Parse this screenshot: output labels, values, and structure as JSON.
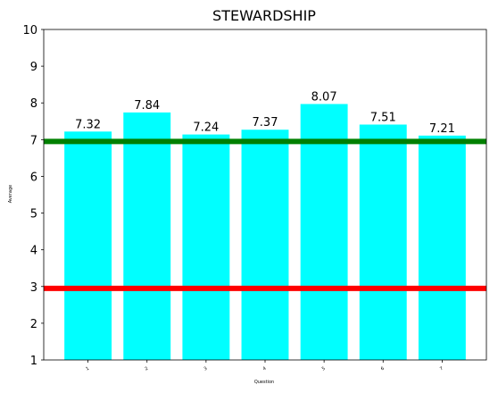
{
  "chart_data": {
    "type": "bar",
    "title": "STEWARDSHIP",
    "xlabel": "Question",
    "ylabel": "Average",
    "categories": [
      "1",
      "2",
      "3",
      "4",
      "5",
      "6",
      "7"
    ],
    "values": [
      7.32,
      7.84,
      7.24,
      7.37,
      8.07,
      7.51,
      7.21
    ],
    "data_labels": [
      "7.32",
      "7.84",
      "7.24",
      "7.37",
      "8.07",
      "7.51",
      "7.21"
    ],
    "bar_color": "#00ffff",
    "ylim": [
      1,
      10
    ],
    "yticks": [
      "1",
      "2",
      "3",
      "4",
      "5",
      "6",
      "7",
      "8",
      "9",
      "10"
    ],
    "reference_lines": [
      {
        "value": 6.95,
        "color": "#008000"
      },
      {
        "value": 2.95,
        "color": "#ff0000"
      }
    ],
    "grid": false,
    "legend": "none"
  }
}
